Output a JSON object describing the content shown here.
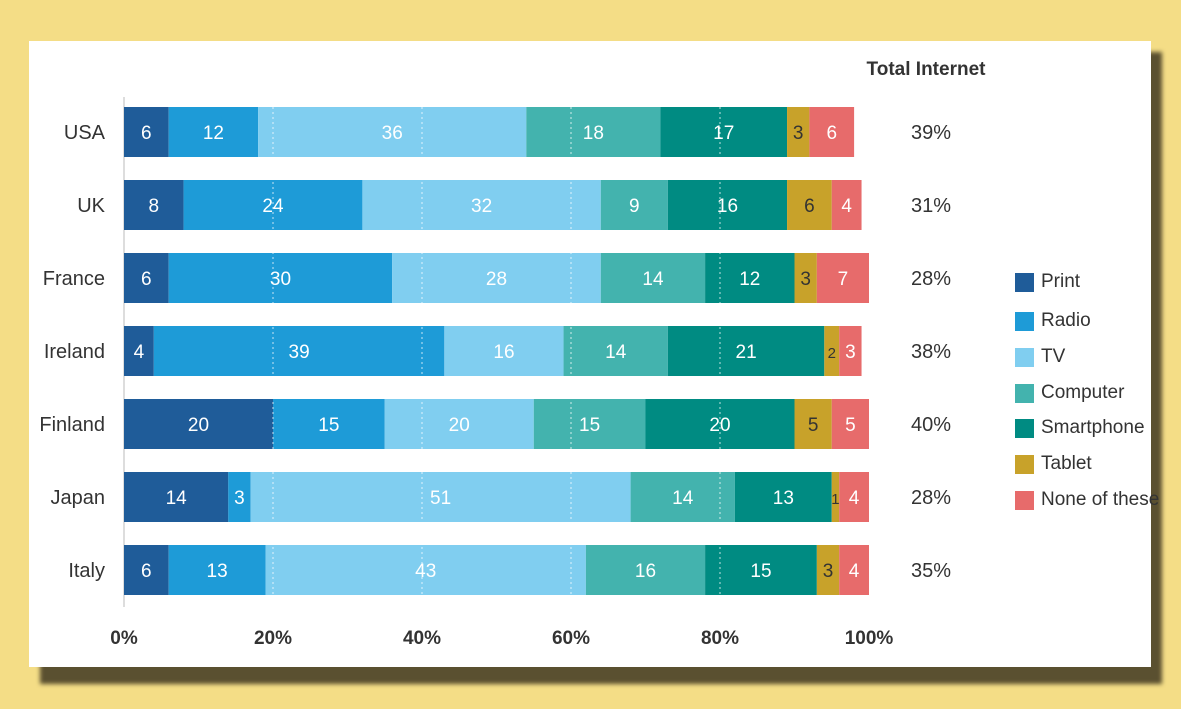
{
  "chart_data": {
    "type": "bar",
    "orientation": "horizontal",
    "stacked": true,
    "categories": [
      "USA",
      "UK",
      "France",
      "Ireland",
      "Finland",
      "Japan",
      "Italy"
    ],
    "series": [
      {
        "name": "Print",
        "color": "#1f5c99",
        "values": [
          6,
          8,
          6,
          4,
          20,
          14,
          6
        ]
      },
      {
        "name": "Radio",
        "color": "#1e9bd7",
        "values": [
          12,
          24,
          30,
          39,
          15,
          3,
          13
        ]
      },
      {
        "name": "TV",
        "color": "#80cef0",
        "values": [
          36,
          32,
          28,
          16,
          20,
          51,
          43
        ]
      },
      {
        "name": "Computer",
        "color": "#43b3ae",
        "values": [
          18,
          9,
          14,
          14,
          15,
          14,
          16
        ]
      },
      {
        "name": "Smartphone",
        "color": "#008b82",
        "values": [
          17,
          16,
          12,
          21,
          20,
          13,
          15
        ]
      },
      {
        "name": "Tablet",
        "color": "#c8a22a",
        "values": [
          3,
          6,
          3,
          2,
          5,
          1,
          3
        ]
      },
      {
        "name": "None of these",
        "color": "#e76b6b",
        "values": [
          6,
          4,
          7,
          3,
          5,
          4,
          4
        ]
      }
    ],
    "x_ticks": [
      "0%",
      "20%",
      "40%",
      "60%",
      "80%",
      "100%"
    ],
    "xlim": [
      0,
      100
    ],
    "grid": true,
    "legend_position": "right",
    "extra_column": {
      "header": "Total Internet",
      "values": [
        "39%",
        "31%",
        "28%",
        "38%",
        "40%",
        "28%",
        "35%"
      ]
    },
    "dark_label_series": [
      "Tablet"
    ]
  },
  "legend": {
    "items": [
      {
        "label": "Print",
        "color": "#1f5c99"
      },
      {
        "label": "Radio",
        "color": "#1e9bd7"
      },
      {
        "label": "TV",
        "color": "#80cef0"
      },
      {
        "label": "Computer",
        "color": "#43b3ae"
      },
      {
        "label": "Smartphone",
        "color": "#008b82"
      },
      {
        "label": "Tablet",
        "color": "#c8a22a"
      },
      {
        "label": "None of these",
        "color": "#e76b6b"
      }
    ]
  }
}
